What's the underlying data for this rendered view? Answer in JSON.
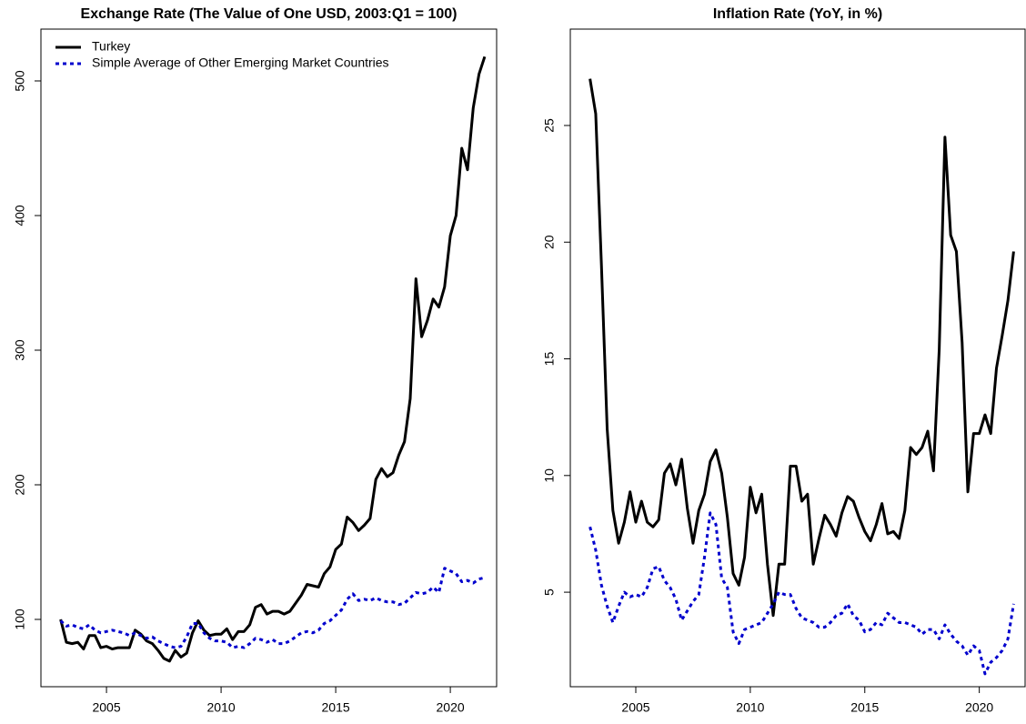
{
  "chart_data": [
    {
      "type": "line",
      "title": "Exchange Rate (The Value of One USD, 2003:Q1 = 100)",
      "x": [
        2003,
        2003.25,
        2003.5,
        2003.75,
        2004,
        2004.25,
        2004.5,
        2004.75,
        2005,
        2005.25,
        2005.5,
        2005.75,
        2006,
        2006.25,
        2006.5,
        2006.75,
        2007,
        2007.25,
        2007.5,
        2007.75,
        2008,
        2008.25,
        2008.5,
        2008.75,
        2009,
        2009.25,
        2009.5,
        2009.75,
        2010,
        2010.25,
        2010.5,
        2010.75,
        2011,
        2011.25,
        2011.5,
        2011.75,
        2012,
        2012.25,
        2012.5,
        2012.75,
        2013,
        2013.25,
        2013.5,
        2013.75,
        2014,
        2014.25,
        2014.5,
        2014.75,
        2015,
        2015.25,
        2015.5,
        2015.75,
        2016,
        2016.25,
        2016.5,
        2016.75,
        2017,
        2017.25,
        2017.5,
        2017.75,
        2018,
        2018.25,
        2018.5,
        2018.75,
        2019,
        2019.25,
        2019.5,
        2019.75,
        2020,
        2020.25,
        2020.5,
        2020.75,
        2021,
        2021.25,
        2021.5
      ],
      "series": [
        {
          "name": "Turkey",
          "color": "#000000",
          "linestyle": "solid",
          "values": [
            100,
            83,
            82,
            83,
            78,
            88,
            88,
            79,
            80,
            78,
            79,
            79,
            79,
            92,
            89,
            84,
            82,
            77,
            71,
            69,
            77,
            72,
            75,
            90,
            99,
            92,
            88,
            89,
            89,
            93,
            85,
            91,
            91,
            96,
            109,
            111,
            104,
            106,
            106,
            104,
            106,
            112,
            118,
            126,
            125,
            124,
            134,
            139,
            152,
            156,
            176,
            172,
            166,
            170,
            175,
            204,
            212,
            206,
            209,
            222,
            232,
            264,
            353,
            310,
            322,
            338,
            332,
            347,
            385,
            400,
            450,
            434,
            480,
            505,
            518
          ]
        },
        {
          "name": "Simple Average of Other Emerging Market Countries",
          "color": "#0000cd",
          "linestyle": "dotted",
          "values": [
            99,
            95,
            96,
            94,
            93,
            96,
            92,
            90,
            91,
            92,
            91,
            90,
            88,
            90,
            88,
            86,
            87,
            84,
            82,
            80,
            79,
            80,
            87,
            97,
            97,
            90,
            86,
            84,
            84,
            83,
            79,
            80,
            79,
            82,
            86,
            85,
            83,
            85,
            82,
            82,
            84,
            87,
            90,
            91,
            90,
            92,
            97,
            99,
            103,
            107,
            115,
            119,
            114,
            115,
            114,
            116,
            114,
            113,
            113,
            111,
            112,
            116,
            120,
            119,
            120,
            124,
            120,
            138,
            136,
            134,
            128,
            129,
            127,
            130,
            131
          ]
        }
      ],
      "xlim": [
        2002.14,
        2022.02
      ],
      "xticks": [
        2005,
        2010,
        2015,
        2020
      ],
      "ylim": [
        50,
        538.5
      ],
      "yticks": [
        100,
        200,
        300,
        400,
        500
      ],
      "legend": "top-left"
    },
    {
      "type": "line",
      "title": "Inflation Rate (YoY, in %)",
      "x": [
        2003,
        2003.25,
        2003.5,
        2003.75,
        2004,
        2004.25,
        2004.5,
        2004.75,
        2005,
        2005.25,
        2005.5,
        2005.75,
        2006,
        2006.25,
        2006.5,
        2006.75,
        2007,
        2007.25,
        2007.5,
        2007.75,
        2008,
        2008.25,
        2008.5,
        2008.75,
        2009,
        2009.25,
        2009.5,
        2009.75,
        2010,
        2010.25,
        2010.5,
        2010.75,
        2011,
        2011.25,
        2011.5,
        2011.75,
        2012,
        2012.25,
        2012.5,
        2012.75,
        2013,
        2013.25,
        2013.5,
        2013.75,
        2014,
        2014.25,
        2014.5,
        2014.75,
        2015,
        2015.25,
        2015.5,
        2015.75,
        2016,
        2016.25,
        2016.5,
        2016.75,
        2017,
        2017.25,
        2017.5,
        2017.75,
        2018,
        2018.25,
        2018.5,
        2018.75,
        2019,
        2019.25,
        2019.5,
        2019.75,
        2020,
        2020.25,
        2020.5,
        2020.75,
        2021,
        2021.25,
        2021.5
      ],
      "series": [
        {
          "name": "Turkey",
          "color": "#000000",
          "linestyle": "solid",
          "values": [
            27,
            25.5,
            19,
            12,
            8.5,
            7.1,
            8,
            9.3,
            8,
            8.9,
            8,
            7.8,
            8.1,
            10.1,
            10.5,
            9.6,
            10.7,
            8.6,
            7.1,
            8.5,
            9.2,
            10.6,
            11.1,
            10.1,
            8.2,
            5.8,
            5.3,
            6.5,
            9.5,
            8.4,
            9.2,
            6.2,
            4.0,
            6.2,
            6.2,
            10.4,
            10.4,
            8.9,
            9.2,
            6.2,
            7.3,
            8.3,
            7.9,
            7.4,
            8.4,
            9.1,
            8.9,
            8.2,
            7.6,
            7.2,
            7.9,
            8.8,
            7.5,
            7.6,
            7.3,
            8.5,
            11.2,
            10.9,
            11.2,
            11.9,
            10.2,
            15.4,
            24.5,
            20.3,
            19.6,
            15.7,
            9.3,
            11.8,
            11.8,
            12.6,
            11.8,
            14.6,
            16,
            17.5,
            19.6
          ]
        },
        {
          "name": "Simple Average of Other Emerging Market Countries",
          "color": "#0000cd",
          "linestyle": "dotted",
          "values": [
            7.8,
            6.8,
            5.3,
            4.4,
            3.7,
            4.4,
            5.0,
            4.8,
            4.9,
            4.8,
            5.2,
            6.0,
            6.1,
            5.5,
            5.2,
            4.7,
            3.8,
            4.2,
            4.6,
            4.9,
            6.5,
            8.4,
            7.9,
            5.6,
            5.2,
            3.3,
            2.8,
            3.4,
            3.5,
            3.6,
            3.7,
            4.1,
            4.5,
            5.0,
            4.9,
            4.9,
            4.3,
            3.9,
            3.8,
            3.7,
            3.5,
            3.5,
            3.7,
            4.0,
            4.1,
            4.5,
            4.0,
            3.8,
            3.3,
            3.4,
            3.7,
            3.6,
            4.1,
            3.9,
            3.7,
            3.7,
            3.6,
            3.5,
            3.2,
            3.4,
            3.4,
            3.0,
            3.6,
            3.2,
            2.9,
            2.7,
            2.3,
            2.7,
            2.5,
            1.5,
            2.0,
            2.2,
            2.5,
            3.0,
            4.5
          ]
        }
      ],
      "xlim": [
        2002.14,
        2022.0
      ],
      "xticks": [
        2005,
        2010,
        2015,
        2020
      ],
      "ylim": [
        0.95,
        29.13
      ],
      "yticks": [
        5,
        10,
        15,
        20,
        25
      ]
    }
  ]
}
